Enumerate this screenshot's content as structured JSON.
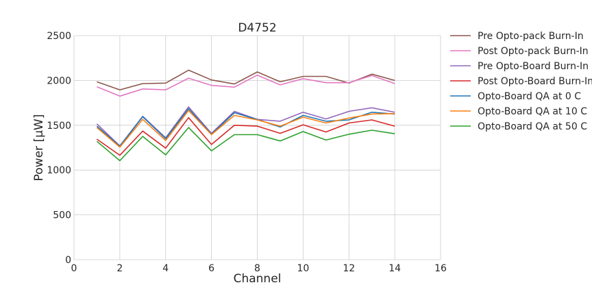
{
  "chart_data": {
    "type": "line",
    "title": "D4752",
    "xlabel": "Channel",
    "ylabel": "Power [μW]",
    "xlim": [
      0,
      16
    ],
    "ylim": [
      0,
      2500
    ],
    "xticks": [
      0,
      2,
      4,
      6,
      8,
      10,
      12,
      14,
      16
    ],
    "yticks": [
      0,
      500,
      1000,
      1500,
      2000,
      2500
    ],
    "grid": true,
    "legend_position": "outside-right",
    "x": [
      1,
      2,
      3,
      4,
      5,
      6,
      7,
      8,
      9,
      10,
      11,
      12,
      13,
      14
    ],
    "series": [
      {
        "name": "Pre Opto-pack Burn-In",
        "color": "#8c564b",
        "values": [
          1985,
          1895,
          1965,
          1970,
          2115,
          2005,
          1960,
          2095,
          1985,
          2045,
          2045,
          1970,
          2070,
          2000
        ]
      },
      {
        "name": "Post Opto-pack Burn-In",
        "color": "#e377c2",
        "values": [
          1930,
          1825,
          1905,
          1895,
          2025,
          1945,
          1925,
          2060,
          1950,
          2020,
          1975,
          1975,
          2055,
          1965
        ]
      },
      {
        "name": "Pre Opto-Board Burn-In",
        "color": "#9467bd",
        "values": [
          1515,
          1270,
          1600,
          1360,
          1705,
          1410,
          1655,
          1565,
          1545,
          1645,
          1570,
          1655,
          1695,
          1645
        ]
      },
      {
        "name": "Post Opto-Board Burn-In",
        "color": "#d62728",
        "values": [
          1345,
          1165,
          1435,
          1245,
          1585,
          1285,
          1500,
          1490,
          1410,
          1505,
          1425,
          1525,
          1560,
          1490
        ]
      },
      {
        "name": "Opto-Board QA at 0 C",
        "color": "#1f77b4",
        "values": [
          1490,
          1265,
          1595,
          1350,
          1685,
          1400,
          1640,
          1565,
          1480,
          1610,
          1545,
          1560,
          1645,
          1625
        ]
      },
      {
        "name": "Opto-Board QA at 10 C",
        "color": "#ff7f0e",
        "values": [
          1475,
          1255,
          1565,
          1330,
          1665,
          1395,
          1610,
          1560,
          1490,
          1590,
          1525,
          1580,
          1625,
          1630
        ]
      },
      {
        "name": "Opto-Board QA at 50 C",
        "color": "#2ca02c",
        "values": [
          1320,
          1105,
          1375,
          1170,
          1475,
          1215,
          1395,
          1395,
          1325,
          1430,
          1335,
          1400,
          1445,
          1405
        ]
      }
    ]
  }
}
